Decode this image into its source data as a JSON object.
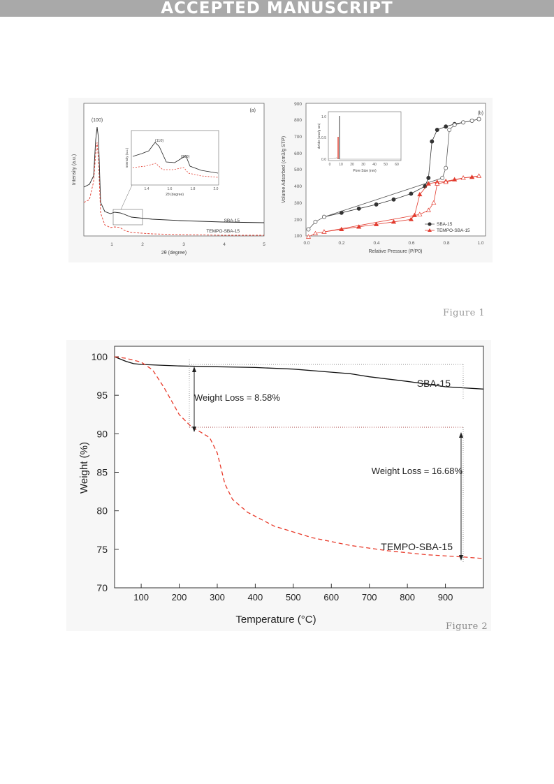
{
  "banner": "ACCEPTED MANUSCRIPT",
  "figure1": {
    "caption": "Figure 1",
    "panel_a": {
      "label": "(a)",
      "peak": "(100)",
      "xlabel": "2θ (degree)",
      "ylabel": "Intensity (a.u.)",
      "xticks": [
        "1",
        "2",
        "3",
        "4",
        "5"
      ],
      "series": [
        "SBA-15",
        "TEMPO-SBA-15"
      ],
      "inset": {
        "ylabel": "Intensity (a.u.)",
        "xlabel": "2θ (degree)",
        "xticks": [
          "1.4",
          "1.6",
          "1.8",
          "2.0"
        ],
        "peaks": [
          "(110)",
          "(200)"
        ]
      }
    },
    "panel_b": {
      "label": "(b)",
      "xlabel": "Relative Pressure (P/P0)",
      "ylabel": "Volume Adsorbed (cm3/g STP)",
      "xticks": [
        "0.0",
        "0.2",
        "0.4",
        "0.6",
        "0.8",
        "1.0"
      ],
      "yticks": [
        "100",
        "200",
        "300",
        "400",
        "500",
        "600",
        "700",
        "800",
        "900"
      ],
      "legend": [
        "SBA-15",
        "TEMPO-SBA-15"
      ],
      "inset": {
        "xlabel": "Pore Size (nm)",
        "ylabel": "dV/dD (cm3/g nm)",
        "xticks": [
          "0",
          "10",
          "20",
          "30",
          "40",
          "50",
          "60"
        ],
        "yticks": [
          "0.0",
          "0.5",
          "1.0"
        ]
      }
    }
  },
  "figure2": {
    "caption": "Figure 2",
    "xlabel": "Temperature (°C)",
    "ylabel": "Weight (%)",
    "annotations": [
      "Weight Loss = 8.58%",
      "Weight Loss = 16.68%"
    ],
    "series_labels": [
      "SBA-15",
      "TEMPO-SBA-15"
    ]
  },
  "chart_data": [
    {
      "type": "line",
      "title": "",
      "xlabel": "2θ (degree)",
      "ylabel": "Intensity (a.u.)",
      "xlim": [
        0.5,
        5
      ],
      "series": [
        {
          "name": "SBA-15",
          "x": [
            0.5,
            0.7,
            0.8,
            0.85,
            0.9,
            1.0,
            1.2,
            1.4,
            1.5,
            1.6,
            1.7,
            1.8,
            2.0,
            3.0,
            4.0,
            5.0
          ],
          "y": [
            0.62,
            0.68,
            0.85,
            1.0,
            0.72,
            0.36,
            0.31,
            0.29,
            0.32,
            0.29,
            0.31,
            0.27,
            0.24,
            0.22,
            0.21,
            0.2
          ]
        },
        {
          "name": "TEMPO-SBA-15",
          "x": [
            0.5,
            0.7,
            0.8,
            0.85,
            0.9,
            1.0,
            1.2,
            1.5,
            1.7,
            2.0,
            3.0,
            4.0,
            5.0
          ],
          "y": [
            0.35,
            0.38,
            0.62,
            0.75,
            0.5,
            0.18,
            0.1,
            0.12,
            0.11,
            0.07,
            0.05,
            0.04,
            0.03
          ]
        }
      ]
    },
    {
      "type": "scatter",
      "title": "",
      "xlabel": "Relative Pressure (P/P0)",
      "ylabel": "Volume Adsorbed (cm3/g STP)",
      "xlim": [
        0,
        1
      ],
      "ylim": [
        100,
        900
      ],
      "series": [
        {
          "name": "SBA-15 adsorption",
          "x": [
            0.1,
            0.2,
            0.3,
            0.4,
            0.5,
            0.6,
            0.68,
            0.7,
            0.72,
            0.75,
            0.8,
            0.85,
            0.9,
            0.95,
            0.99
          ],
          "y": [
            215,
            240,
            265,
            290,
            320,
            355,
            400,
            450,
            670,
            740,
            760,
            775,
            785,
            795,
            805
          ]
        },
        {
          "name": "SBA-15 desorption",
          "x": [
            0.01,
            0.05,
            0.1,
            0.78,
            0.8,
            0.82,
            0.85,
            0.9,
            0.95,
            0.99
          ],
          "y": [
            140,
            185,
            215,
            450,
            510,
            740,
            770,
            785,
            795,
            805
          ]
        },
        {
          "name": "TEMPO-SBA-15 adsorption",
          "x": [
            0.1,
            0.2,
            0.3,
            0.4,
            0.5,
            0.6,
            0.62,
            0.65,
            0.7,
            0.75,
            0.8,
            0.85,
            0.9,
            0.95,
            0.99
          ],
          "y": [
            125,
            140,
            155,
            170,
            185,
            200,
            225,
            350,
            415,
            425,
            430,
            440,
            450,
            455,
            462
          ]
        },
        {
          "name": "TEMPO-SBA-15 desorption",
          "x": [
            0.01,
            0.05,
            0.1,
            0.65,
            0.7,
            0.73,
            0.75,
            0.8,
            0.9,
            0.99
          ],
          "y": [
            95,
            115,
            125,
            230,
            255,
            300,
            415,
            425,
            450,
            462
          ]
        }
      ]
    },
    {
      "type": "line",
      "title": "",
      "xlabel": "Temperature (°C)",
      "ylabel": "Weight (%)",
      "xlim": [
        30,
        1000
      ],
      "ylim": [
        70,
        101
      ],
      "xticks": [
        100,
        200,
        300,
        400,
        500,
        600,
        700,
        800,
        900
      ],
      "yticks": [
        70,
        75,
        80,
        85,
        90,
        95,
        100
      ],
      "series": [
        {
          "name": "SBA-15",
          "x": [
            30,
            60,
            80,
            100,
            150,
            200,
            300,
            400,
            500,
            600,
            650,
            700,
            800,
            900,
            1000
          ],
          "y": [
            100,
            99.4,
            99.1,
            99.0,
            98.9,
            98.8,
            98.7,
            98.6,
            98.4,
            98.0,
            97.8,
            97.4,
            96.8,
            96.1,
            95.8
          ]
        },
        {
          "name": "TEMPO-SBA-15",
          "x": [
            30,
            60,
            100,
            130,
            160,
            200,
            230,
            260,
            280,
            300,
            320,
            340,
            380,
            450,
            550,
            650,
            750,
            850,
            950,
            1000
          ],
          "y": [
            100,
            99.8,
            99.3,
            98.3,
            96.0,
            92.5,
            91.0,
            90.1,
            89.5,
            87.5,
            83.5,
            81.5,
            79.8,
            78.0,
            76.5,
            75.5,
            74.8,
            74.3,
            74.0,
            73.8
          ]
        }
      ]
    }
  ]
}
